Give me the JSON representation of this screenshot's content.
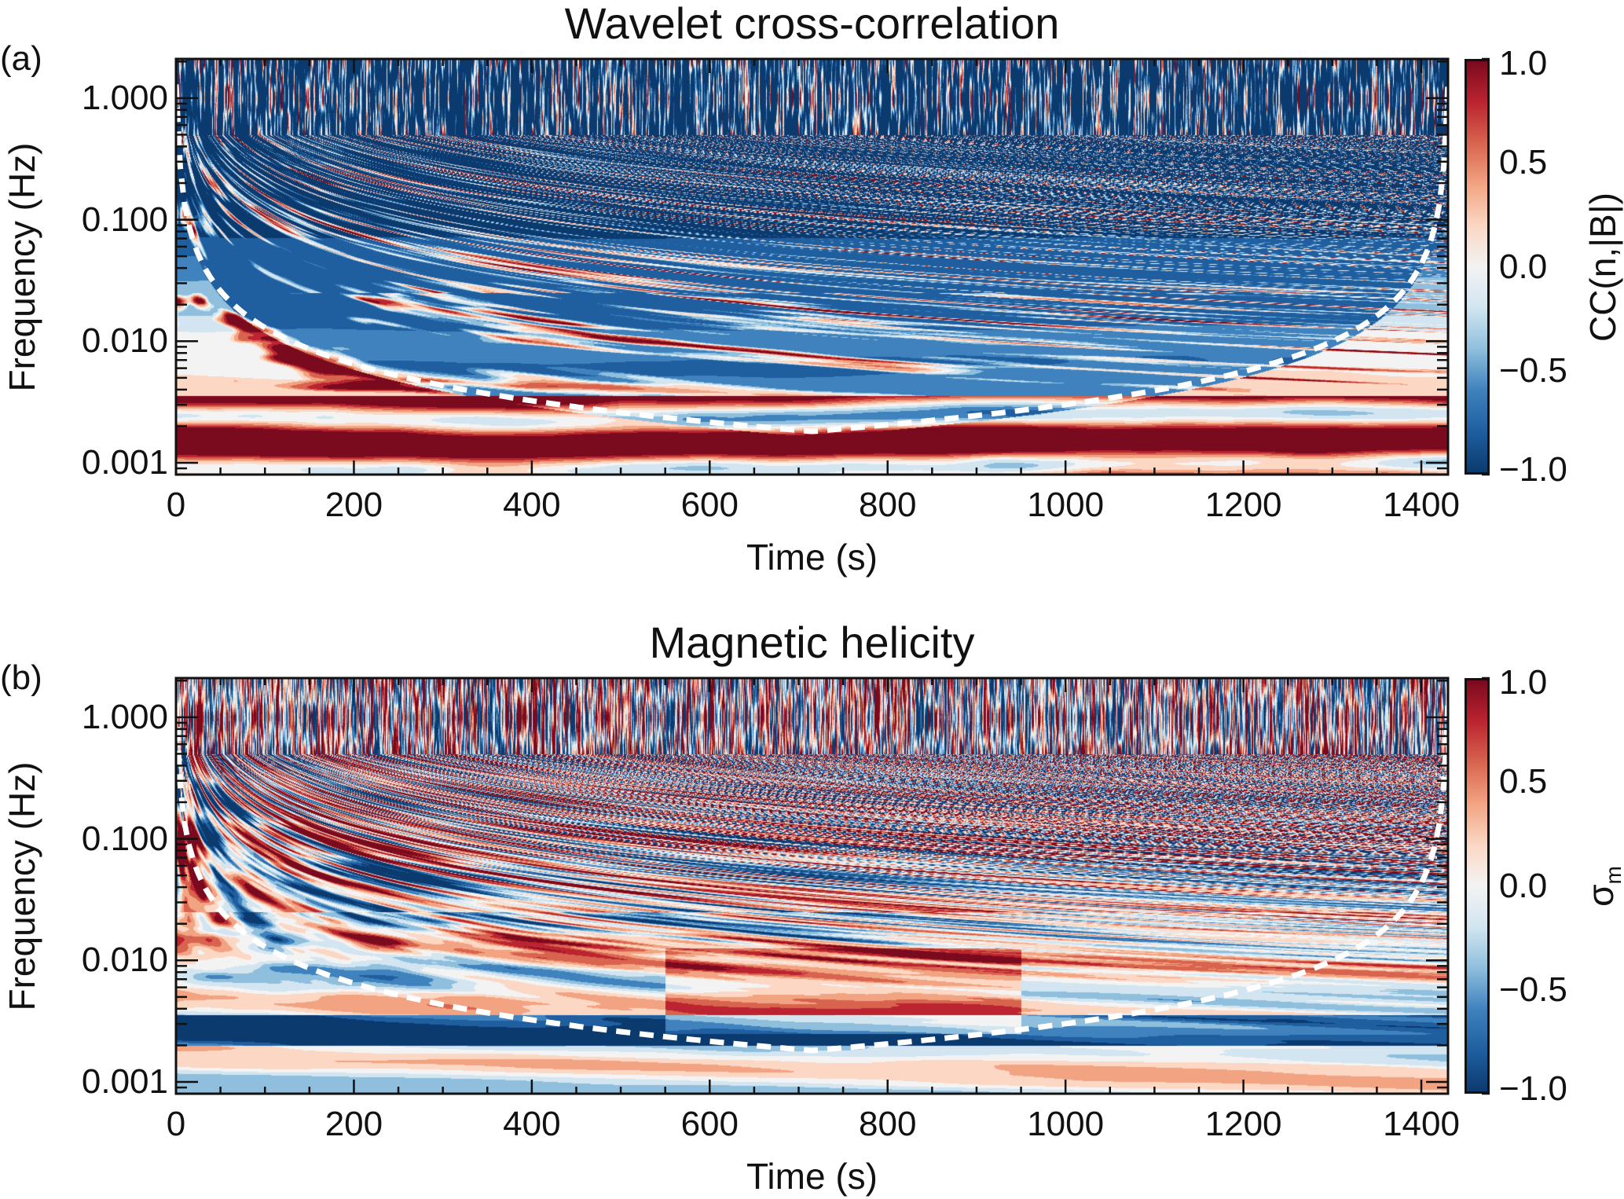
{
  "chart_data": [
    {
      "type": "heatmap",
      "panel_label": "(a)",
      "title": "Wavelet cross-correlation",
      "xlabel": "Time (s)",
      "ylabel": "Frequency (Hz)",
      "xlim": [
        0,
        1430
      ],
      "ylim": [
        0.0008,
        2.1
      ],
      "yscale": "log",
      "xticks": [
        0,
        200,
        400,
        600,
        800,
        1000,
        1200,
        1400
      ],
      "xtick_labels": [
        "0",
        "200",
        "400",
        "600",
        "800",
        "1000",
        "1200",
        "1400"
      ],
      "yticks": [
        0.001,
        0.01,
        0.1,
        1.0
      ],
      "ytick_labels": [
        "0.001",
        "0.010",
        "0.100",
        "1.000"
      ],
      "colorbar": {
        "label": "CC(n,|B|)",
        "range": [
          -1.0,
          1.0
        ],
        "ticks": [
          1.0,
          0.5,
          0.0,
          -0.5,
          -1.0
        ],
        "tick_labels": [
          "1.0",
          "0.5",
          "0.0",
          "−0.5",
          "−1.0"
        ]
      },
      "description_of_field": "mostly anti-correlated (-1) at high frequencies with scattered positive patches; positive horizontal bands below ~0.01 Hz",
      "cone_of_influence": {
        "style": "white dashed",
        "min_frequency_hz": 0.0018,
        "min_at_time_s": 720
      },
      "seed": 7,
      "field_bias": "negative"
    },
    {
      "type": "heatmap",
      "panel_label": "(b)",
      "title": "Magnetic helicity",
      "xlabel": "Time (s)",
      "ylabel": "Frequency (Hz)",
      "xlim": [
        0,
        1430
      ],
      "ylim": [
        0.0008,
        2.1
      ],
      "yscale": "log",
      "xticks": [
        0,
        200,
        400,
        600,
        800,
        1000,
        1200,
        1400
      ],
      "xtick_labels": [
        "0",
        "200",
        "400",
        "600",
        "800",
        "1000",
        "1200",
        "1400"
      ],
      "yticks": [
        0.001,
        0.01,
        0.1,
        1.0
      ],
      "ytick_labels": [
        "0.001",
        "0.010",
        "0.100",
        "1.000"
      ],
      "colorbar": {
        "label": "σm",
        "label_main": "σ",
        "label_sub": "m",
        "range": [
          -1.0,
          1.0
        ],
        "ticks": [
          1.0,
          0.5,
          0.0,
          -0.5,
          -1.0
        ],
        "tick_labels": [
          "1.0",
          "0.5",
          "0.0",
          "−0.5",
          "−1.0"
        ]
      },
      "description_of_field": "mixed signs near zero; high-frequency fluctuations of both signs; negative band near 0.003 Hz, positive region 600-900 s below 0.01 Hz",
      "cone_of_influence": {
        "style": "white dashed",
        "min_frequency_hz": 0.0018,
        "min_at_time_s": 720
      },
      "seed": 19,
      "field_bias": "neutral"
    }
  ],
  "colormap": [
    "#0b3a6f",
    "#1f5fa0",
    "#3f82bd",
    "#8fbfdd",
    "#d2e5f0",
    "#f3f3f3",
    "#fbd7c4",
    "#f2a482",
    "#d8644f",
    "#bb2430",
    "#7a0a1e"
  ]
}
